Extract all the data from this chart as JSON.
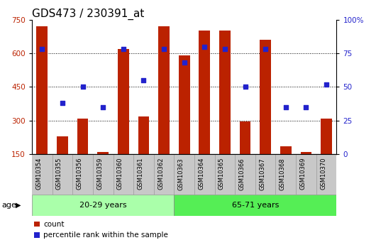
{
  "title": "GDS473 / 230391_at",
  "samples": [
    "GSM10354",
    "GSM10355",
    "GSM10356",
    "GSM10359",
    "GSM10360",
    "GSM10361",
    "GSM10362",
    "GSM10363",
    "GSM10364",
    "GSM10365",
    "GSM10366",
    "GSM10367",
    "GSM10368",
    "GSM10369",
    "GSM10370"
  ],
  "counts": [
    720,
    230,
    310,
    160,
    620,
    320,
    720,
    590,
    700,
    700,
    295,
    660,
    185,
    160,
    310
  ],
  "percentile_ranks": [
    78,
    38,
    50,
    35,
    78,
    55,
    78,
    68,
    80,
    78,
    50,
    78,
    35,
    35,
    52
  ],
  "group1_label": "20-29 years",
  "group1_samples": 7,
  "group2_label": "65-71 years",
  "group2_samples": 8,
  "age_label": "age",
  "ylim_left": [
    150,
    750
  ],
  "ylim_right": [
    0,
    100
  ],
  "yticks_left": [
    150,
    300,
    450,
    600,
    750
  ],
  "yticks_right": [
    0,
    25,
    50,
    75,
    100
  ],
  "bar_color": "#BB2200",
  "dot_color": "#2222CC",
  "bar_bottom": 150,
  "bg_color_plot": "#FFFFFF",
  "bg_color_tick": "#C8C8C8",
  "group1_color": "#AAFFAA",
  "group2_color": "#55EE55",
  "legend_count_label": "count",
  "legend_pct_label": "percentile rank within the sample",
  "title_fontsize": 11,
  "tick_fontsize": 7.5,
  "sample_fontsize": 6.0,
  "age_group_fontsize": 8.0,
  "legend_fontsize": 7.5
}
